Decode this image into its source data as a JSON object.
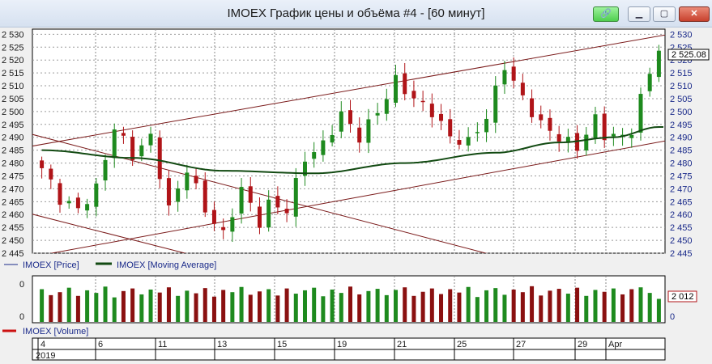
{
  "window": {
    "title": "IMOEX График цены и объёма #4 - [60 минут]",
    "buttons": [
      {
        "name": "link-button",
        "label": "🔗"
      },
      {
        "name": "minimize-button",
        "label": "▁"
      },
      {
        "name": "maximize-button",
        "label": "▢"
      },
      {
        "name": "close-button",
        "label": "✕"
      }
    ]
  },
  "colors": {
    "up": "#1e8a1e",
    "down": "#b01418",
    "ma": "#124a12",
    "channel": "#7a1a1a",
    "volume_up": "#1e8a1e",
    "volume_down": "#8a1010",
    "price_line": "#1a2a8a"
  },
  "legend": {
    "price": "IMOEX [Price]",
    "ma": "IMOEX [Moving Average]",
    "volume": "IMOEX [Volume]"
  },
  "chart_data": {
    "type": "candlestick",
    "price_axis": {
      "min": 2445,
      "max": 2532,
      "ticks": [
        "2 445",
        "2 450",
        "2 455",
        "2 460",
        "2 465",
        "2 470",
        "2 475",
        "2 480",
        "2 485",
        "2 490",
        "2 495",
        "2 500",
        "2 505",
        "2 510",
        "2 515",
        "2 520",
        "2 525",
        "2 530"
      ],
      "tick_values": [
        2445,
        2450,
        2455,
        2460,
        2465,
        2470,
        2475,
        2480,
        2485,
        2490,
        2495,
        2500,
        2505,
        2510,
        2515,
        2520,
        2525,
        2530
      ],
      "last_label": "2 525.08"
    },
    "volume_axis": {
      "ticks": [
        "0",
        "0"
      ],
      "last_label": "2 012"
    },
    "x_axis": {
      "day_labels": [
        "4",
        "6",
        "11",
        "13",
        "15",
        "19",
        "21",
        "25",
        "27",
        "29",
        "Apr"
      ],
      "year_label": "2019"
    },
    "anchors": [
      [
        0,
        2478
      ],
      [
        2,
        2466
      ],
      [
        4,
        2462
      ],
      [
        6,
        2470
      ],
      [
        8,
        2494
      ],
      [
        10,
        2483
      ],
      [
        12,
        2490
      ],
      [
        14,
        2462
      ],
      [
        16,
        2478
      ],
      [
        18,
        2462
      ],
      [
        20,
        2452
      ],
      [
        22,
        2470
      ],
      [
        24,
        2457
      ],
      [
        25,
        2464
      ],
      [
        27,
        2462
      ],
      [
        29,
        2482
      ],
      [
        31,
        2487
      ],
      [
        33,
        2499
      ],
      [
        35,
        2490
      ],
      [
        37,
        2500
      ],
      [
        39,
        2512
      ],
      [
        41,
        2505
      ],
      [
        43,
        2500
      ],
      [
        45,
        2490
      ],
      [
        47,
        2488
      ],
      [
        49,
        2498
      ],
      [
        51,
        2518
      ],
      [
        53,
        2505
      ],
      [
        55,
        2495
      ],
      [
        57,
        2490
      ],
      [
        59,
        2486
      ],
      [
        61,
        2497
      ],
      [
        62,
        2491
      ],
      [
        64,
        2490
      ],
      [
        65,
        2493
      ],
      [
        66,
        2505
      ],
      [
        68,
        2525
      ]
    ],
    "ma": [
      [
        0,
        2485
      ],
      [
        10,
        2482
      ],
      [
        20,
        2477
      ],
      [
        30,
        2476
      ],
      [
        40,
        2480
      ],
      [
        50,
        2484
      ],
      [
        57,
        2488
      ],
      [
        63,
        2490
      ],
      [
        68,
        2494
      ]
    ],
    "channel_lines": [
      {
        "from": [
          -2,
          2486
        ],
        "to": [
          74,
          2533
        ]
      },
      {
        "from": [
          -2,
          2443
        ],
        "to": [
          74,
          2492
        ]
      },
      {
        "from": [
          -2,
          2492
        ],
        "to": [
          50,
          2444
        ]
      },
      {
        "from": [
          -2,
          2461
        ],
        "to": [
          18,
          2443
        ]
      }
    ],
    "candles": 69,
    "volume_relative": [
      0.88,
      0.72,
      0.8,
      0.92,
      0.7,
      0.85,
      0.78,
      0.95,
      0.66,
      0.83,
      0.9,
      0.74,
      0.87,
      0.79,
      0.93,
      0.7,
      0.84,
      0.77,
      0.91,
      0.68,
      0.86,
      0.8,
      0.94,
      0.73,
      0.82,
      0.88,
      0.71,
      0.9,
      0.76,
      0.85,
      0.92,
      0.69,
      0.87,
      0.78,
      0.95,
      0.74,
      0.83,
      0.89,
      0.72,
      0.86,
      0.93,
      0.7,
      0.81,
      0.9,
      0.75,
      0.88,
      0.79,
      0.94,
      0.67,
      0.85,
      0.91,
      0.73,
      0.87,
      0.8,
      0.96,
      0.71,
      0.84,
      0.89,
      0.76,
      0.92,
      0.7,
      0.86,
      0.81,
      0.9,
      0.74,
      0.88,
      0.93,
      0.78,
      0.62
    ]
  }
}
